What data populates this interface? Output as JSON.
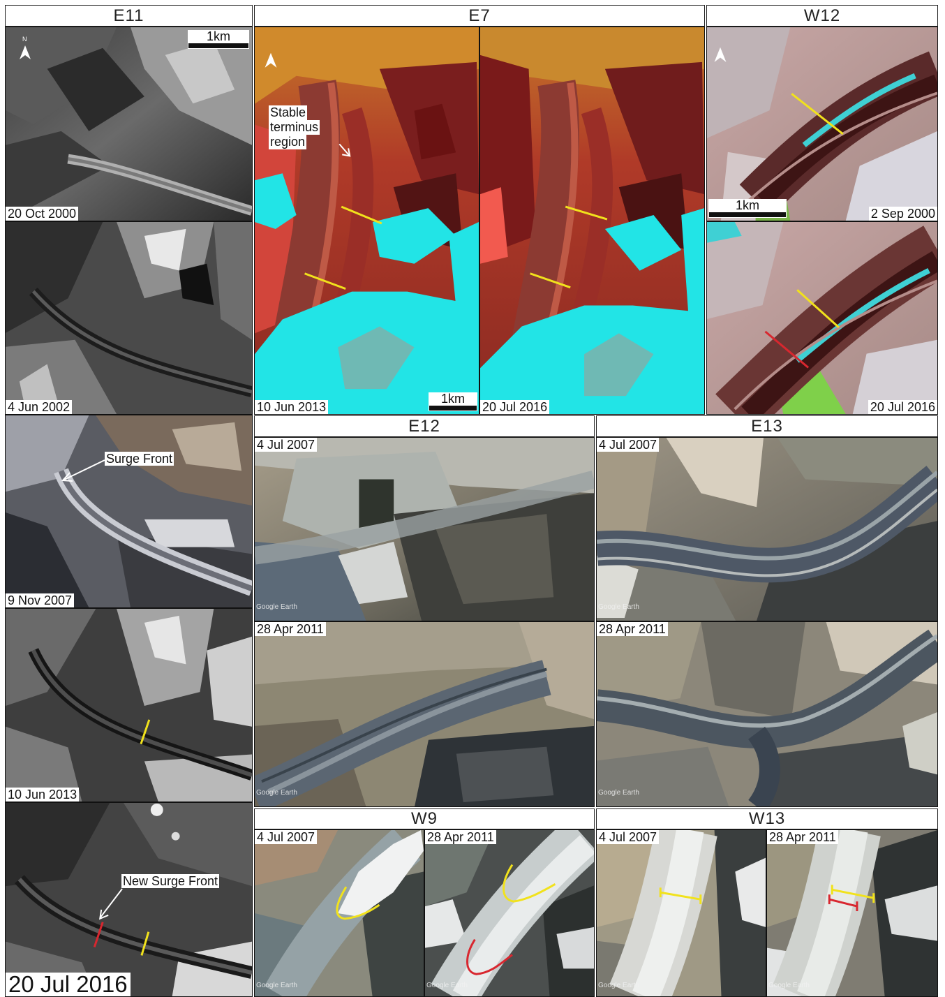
{
  "headers": {
    "e11": "E11",
    "e7": "E7",
    "w12": "W12",
    "e12": "E12",
    "e13": "E13",
    "w9": "W9",
    "w13": "W13"
  },
  "e11": {
    "d1": "20 Oct 2000",
    "d2": "4 Jun 2002",
    "d3": "9 Nov 2007",
    "d4": "10 Jun 2013",
    "d5": "20 Jul 2016",
    "scale": "1km",
    "surge_front": "Surge Front",
    "new_surge_front": "New Surge Front"
  },
  "e7": {
    "d1": "10 Jun 2013",
    "d2": "20 Jul 2016",
    "scale": "1km",
    "stable_line1": "Stable",
    "stable_line2": "terminus",
    "stable_line3": "region"
  },
  "w12": {
    "d1": "2 Sep 2000",
    "d2": "20 Jul 2016",
    "scale": "1km"
  },
  "e12": {
    "d1": "4 Jul 2007",
    "d2": "28 Apr 2011"
  },
  "e13": {
    "d1": "4 Jul 2007",
    "d2": "28 Apr 2011"
  },
  "w9": {
    "d1": "4 Jul 2007",
    "d2": "28 Apr 2011"
  },
  "w13": {
    "d1": "4 Jul 2007",
    "d2": "28 Apr 2011"
  },
  "watermark": "Google Earth",
  "north_label": "N",
  "colors": {
    "yellow_line": "#f1e21c",
    "red_line": "#d8272f",
    "glacier_red": "#b8412b",
    "snow_cyan": "#22e4e6"
  }
}
